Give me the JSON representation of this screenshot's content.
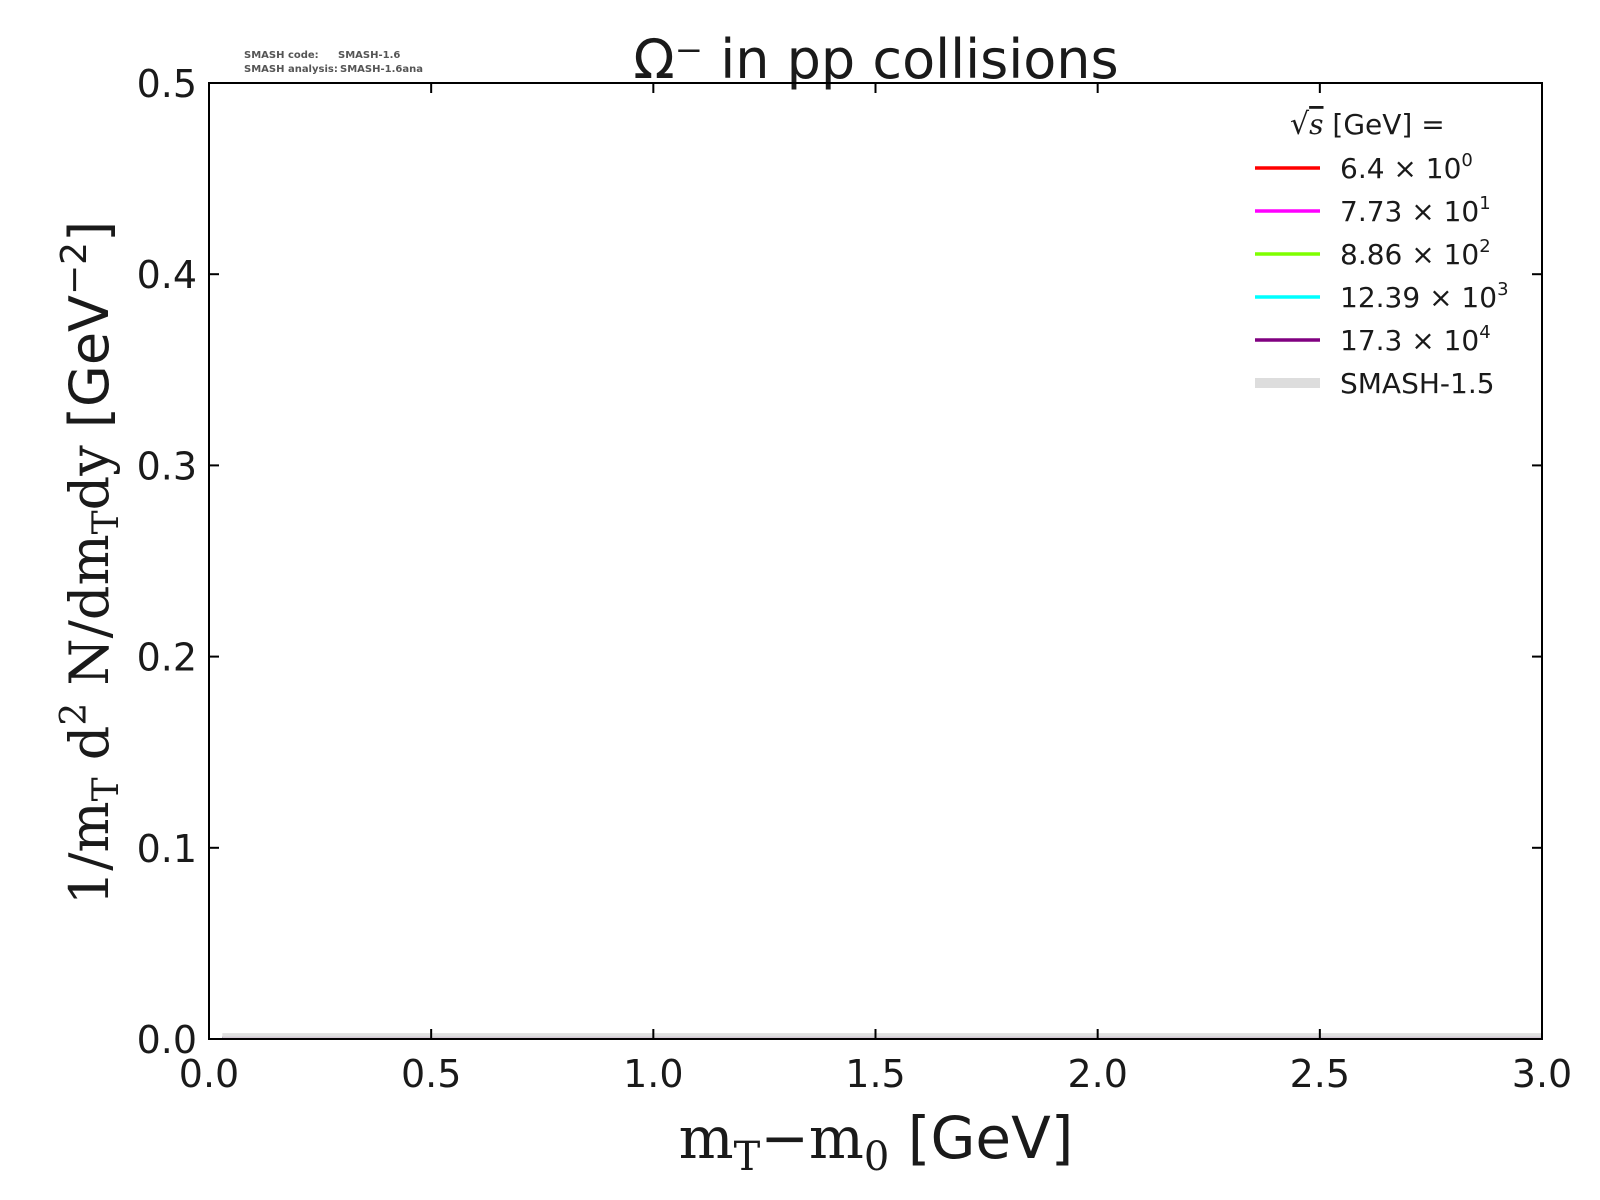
{
  "chart_data": {
    "type": "line",
    "title": "Ω⁻ in pp collisions",
    "xlabel": {
      "main": "m",
      "sub1": "T",
      "dash": "−m",
      "sub2": "0",
      "unit": " [GeV]"
    },
    "ylabel": {
      "part1": "1/m",
      "sub1": "T",
      "part2": " d",
      "sup": "2",
      "part3": " N/dm",
      "sub2": "T",
      "part4": "dy",
      "unit": " [GeV",
      "unit_sup": "−2",
      "unit_close": "]"
    },
    "xlim": [
      0.0,
      3.0
    ],
    "ylim": [
      0.0,
      0.5
    ],
    "x_ticks": [
      0.0,
      0.5,
      1.0,
      1.5,
      2.0,
      2.5,
      3.0
    ],
    "x_tick_labels": [
      "0.0",
      "0.5",
      "1.0",
      "1.5",
      "2.0",
      "2.5",
      "3.0"
    ],
    "y_ticks": [
      0.0,
      0.1,
      0.2,
      0.3,
      0.4,
      0.5
    ],
    "y_tick_labels": [
      "0.0",
      "0.1",
      "0.2",
      "0.3",
      "0.4",
      "0.5"
    ],
    "grid": false,
    "legend_position": "top-right",
    "legend_title": {
      "sqrt": "√",
      "s": "s",
      "rest": " [GeV] ="
    },
    "series": [
      {
        "name": "6.4",
        "exp": "0",
        "color": "#ff0000",
        "x": [
          0.03,
          3.0
        ],
        "y": [
          0.0005,
          0.0005
        ]
      },
      {
        "name": "7.73",
        "exp": "1",
        "color": "#ff00ff",
        "x": [
          0.03,
          3.0
        ],
        "y": [
          0.0005,
          0.0005
        ]
      },
      {
        "name": "8.86",
        "exp": "2",
        "color": "#7fff00",
        "x": [
          0.03,
          3.0
        ],
        "y": [
          0.0005,
          0.0005
        ]
      },
      {
        "name": "12.39",
        "exp": "3",
        "color": "#00ffff",
        "x": [
          0.03,
          3.0
        ],
        "y": [
          0.0005,
          0.0005
        ]
      },
      {
        "name": "17.3",
        "exp": "4",
        "color": "#800080",
        "x": [
          0.03,
          3.0
        ],
        "y": [
          0.0005,
          0.0005
        ]
      },
      {
        "name": "SMASH-1.5",
        "color": "#dddddd",
        "x": [
          0.03,
          3.0
        ],
        "y": [
          0.0015,
          0.0015
        ],
        "band": true
      }
    ],
    "version_info": {
      "code_label": "SMASH code:",
      "code_value": "SMASH-1.6",
      "analysis_label": "SMASH analysis:",
      "analysis_value": "SMASH-1.6ana"
    }
  }
}
